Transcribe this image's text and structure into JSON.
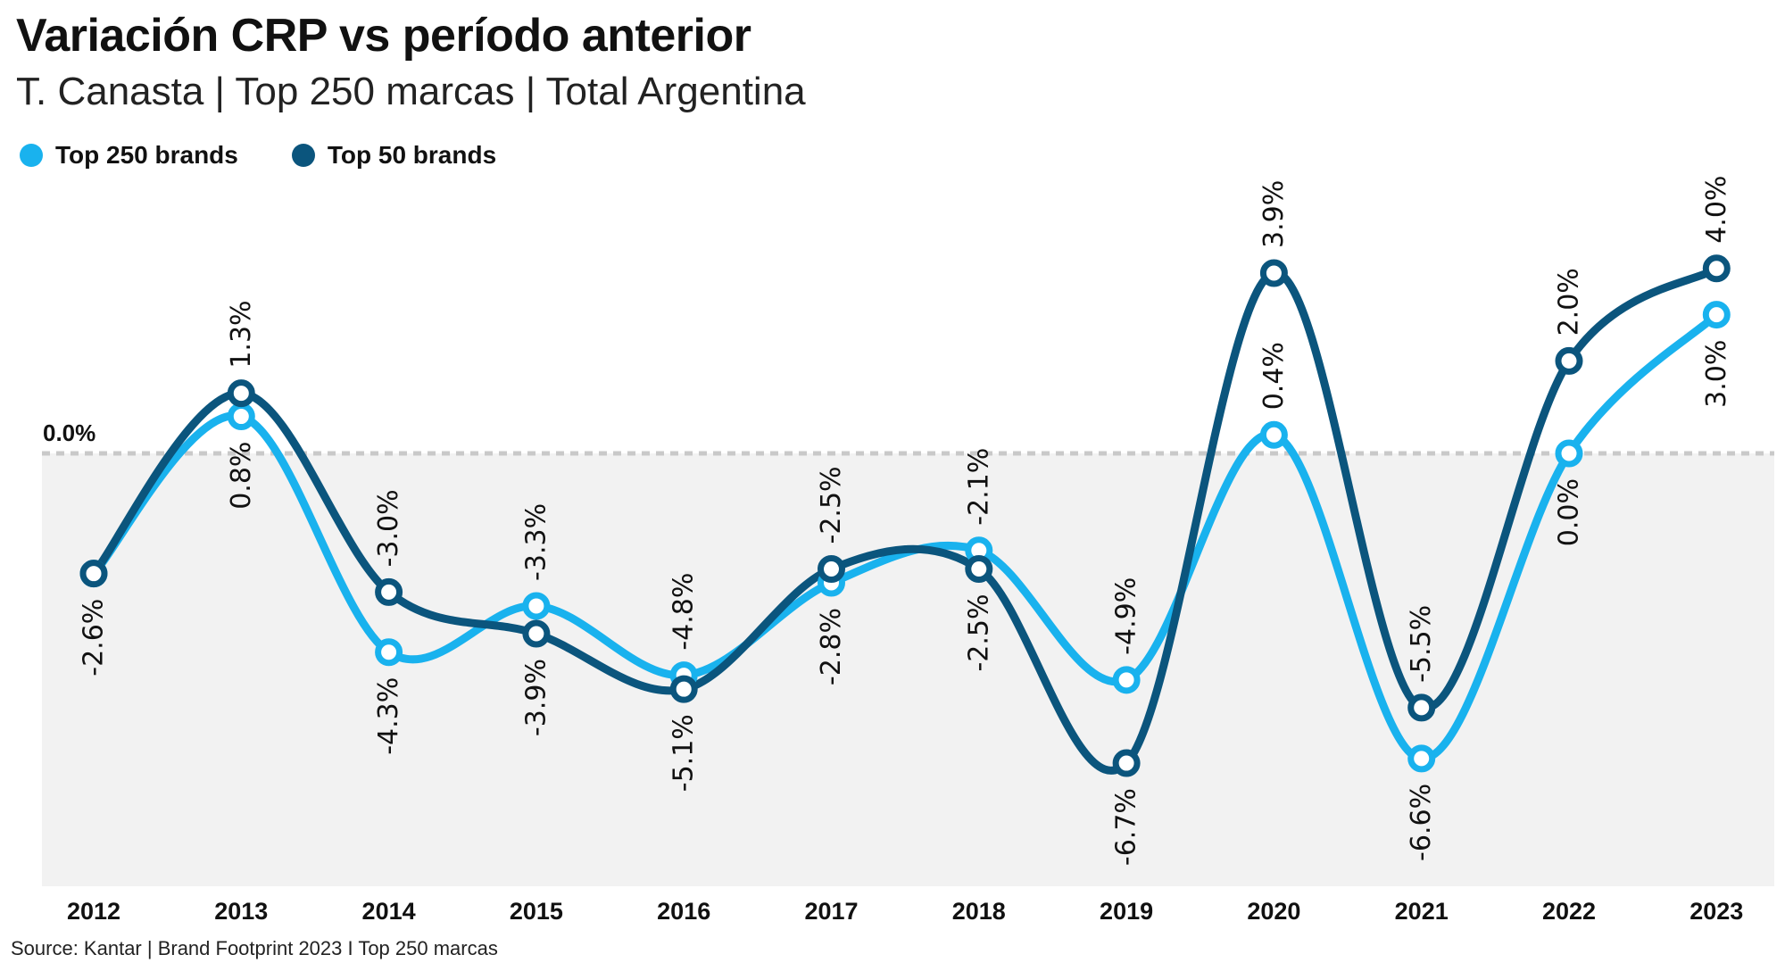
{
  "header": {
    "title": "Variación CRP vs período anterior",
    "subtitle": "T. Canasta | Top 250 marcas | Total Argentina"
  },
  "footer": {
    "source": "Source: Kantar | Brand Footprint 2023 I Top 250 marcas"
  },
  "colors": {
    "top250": "#19B2EE",
    "top50": "#0B557D",
    "plot_background": "#F2F2F2",
    "zero_line": "#C9C9C9"
  },
  "chart_data": {
    "type": "line",
    "title": "Variación CRP vs período anterior",
    "subtitle": "T. Canasta | Top 250 marcas | Total Argentina",
    "categories": [
      "2012",
      "2013",
      "2014",
      "2015",
      "2016",
      "2017",
      "2018",
      "2019",
      "2020",
      "2021",
      "2022",
      "2023"
    ],
    "series": [
      {
        "name": "Top 250 brands",
        "values": [
          -2.6,
          0.8,
          -4.3,
          -3.3,
          -4.8,
          -2.8,
          -2.1,
          -4.9,
          0.4,
          -6.6,
          0.0,
          3.0
        ],
        "labels": [
          "-2.6%",
          "0.8%",
          "-4.3%",
          "-3.3%",
          "-4.8%",
          "-2.8%",
          "-2.1%",
          "-4.9%",
          "0.4%",
          "-6.6%",
          "0.0%",
          "3.0%"
        ],
        "label_position": [
          "below",
          "below",
          "below",
          "above",
          "above",
          "below",
          "above",
          "above",
          "above",
          "below",
          "below",
          "below"
        ]
      },
      {
        "name": "Top 50 brands",
        "values": [
          -2.6,
          1.3,
          -3.0,
          -3.9,
          -5.1,
          -2.5,
          -2.5,
          -6.7,
          3.9,
          -5.5,
          2.0,
          4.0
        ],
        "labels": [
          "",
          "1.3%",
          "-3.0%",
          "-3.9%",
          "-5.1%",
          "-2.5%",
          "-2.5%",
          "-6.7%",
          "3.9%",
          "-5.5%",
          "2.0%",
          "4.0%"
        ],
        "label_position": [
          "below",
          "above",
          "above",
          "below",
          "below",
          "above",
          "below",
          "below",
          "above",
          "above",
          "above",
          "above"
        ]
      }
    ],
    "reference_line": {
      "value": 0.0,
      "label": "0.0%"
    },
    "ylim": [
      -9.4,
      10.0
    ],
    "grid": false,
    "legend_position": "top-left"
  }
}
